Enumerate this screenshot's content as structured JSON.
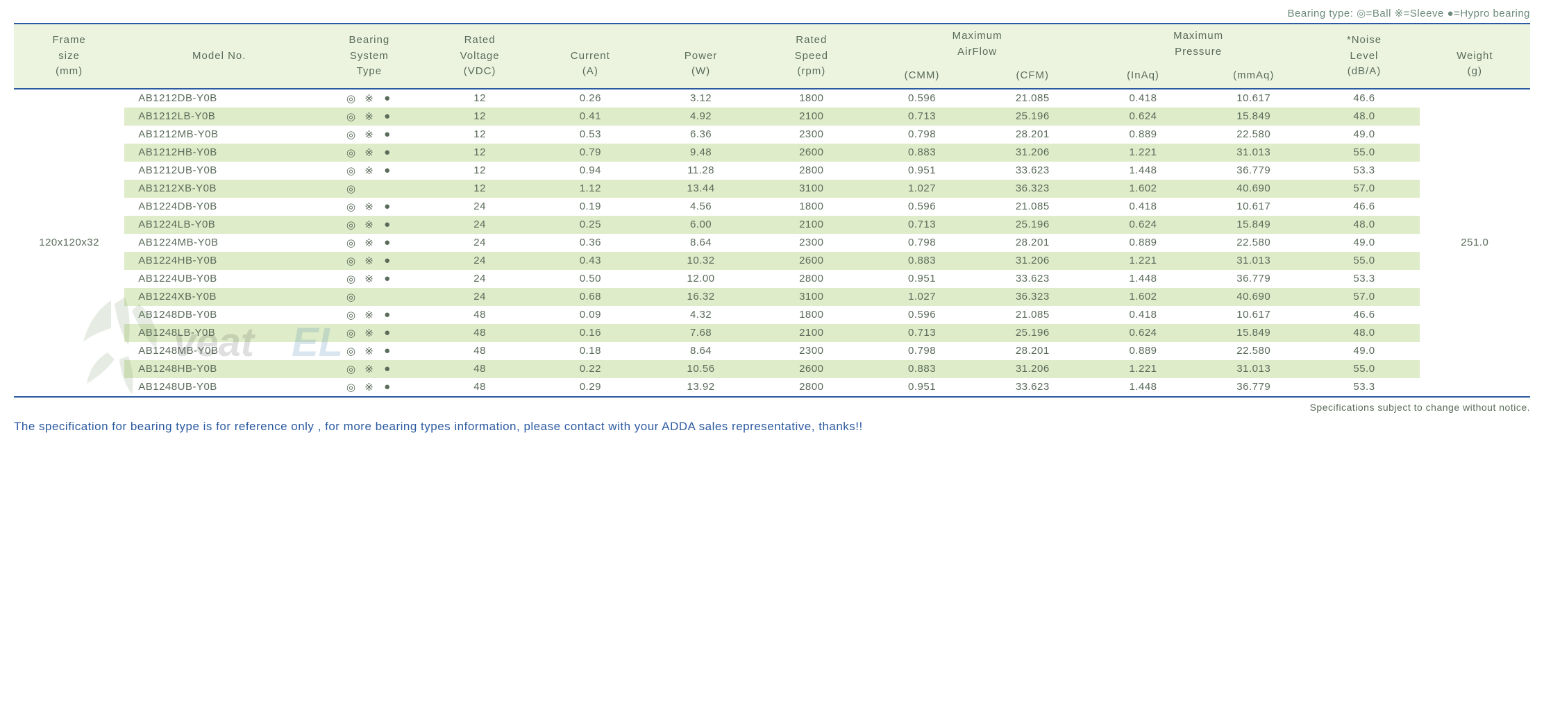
{
  "legend": "Bearing type:  ◎=Ball ※=Sleeve ●=Hypro bearing",
  "header": {
    "frame": [
      "Frame",
      "size",
      "(mm)"
    ],
    "model": [
      "",
      "Model No.",
      ""
    ],
    "bearing": [
      "Bearing",
      "System",
      "Type"
    ],
    "voltage": [
      "Rated",
      "Voltage",
      "(VDC)"
    ],
    "current": [
      "",
      "Current",
      "(A)"
    ],
    "power": [
      "",
      "Power",
      "(W)"
    ],
    "speed": [
      "Rated",
      "Speed",
      "(rpm)"
    ],
    "airflow": [
      "Maximum",
      "AirFlow"
    ],
    "airflow_units": [
      "(CMM)",
      "(CFM)"
    ],
    "pressure": [
      "Maximum",
      "Pressure"
    ],
    "pressure_units": [
      "(InAq)",
      "(mmAq)"
    ],
    "noise": [
      "*Noise",
      "Level",
      "(dB/A)"
    ],
    "weight": [
      "",
      "Weight",
      "(g)"
    ]
  },
  "frame_size": "120x120x32",
  "weight": "251.0",
  "rows": [
    {
      "model": "AB1212DB-Y0B",
      "ball": "◎",
      "sleeve": "※",
      "hypro": "●",
      "voltage": "12",
      "current": "0.26",
      "power": "3.12",
      "speed": "1800",
      "cmm": "0.596",
      "cfm": "21.085",
      "inaq": "0.418",
      "mmaq": "10.617",
      "noise": "46.6"
    },
    {
      "model": "AB1212LB-Y0B",
      "ball": "◎",
      "sleeve": "※",
      "hypro": "●",
      "voltage": "12",
      "current": "0.41",
      "power": "4.92",
      "speed": "2100",
      "cmm": "0.713",
      "cfm": "25.196",
      "inaq": "0.624",
      "mmaq": "15.849",
      "noise": "48.0"
    },
    {
      "model": "AB1212MB-Y0B",
      "ball": "◎",
      "sleeve": "※",
      "hypro": "●",
      "voltage": "12",
      "current": "0.53",
      "power": "6.36",
      "speed": "2300",
      "cmm": "0.798",
      "cfm": "28.201",
      "inaq": "0.889",
      "mmaq": "22.580",
      "noise": "49.0"
    },
    {
      "model": "AB1212HB-Y0B",
      "ball": "◎",
      "sleeve": "※",
      "hypro": "●",
      "voltage": "12",
      "current": "0.79",
      "power": "9.48",
      "speed": "2600",
      "cmm": "0.883",
      "cfm": "31.206",
      "inaq": "1.221",
      "mmaq": "31.013",
      "noise": "55.0"
    },
    {
      "model": "AB1212UB-Y0B",
      "ball": "◎",
      "sleeve": "※",
      "hypro": "●",
      "voltage": "12",
      "current": "0.94",
      "power": "11.28",
      "speed": "2800",
      "cmm": "0.951",
      "cfm": "33.623",
      "inaq": "1.448",
      "mmaq": "36.779",
      "noise": "53.3"
    },
    {
      "model": "AB1212XB-Y0B",
      "ball": "◎",
      "sleeve": "",
      "hypro": "",
      "voltage": "12",
      "current": "1.12",
      "power": "13.44",
      "speed": "3100",
      "cmm": "1.027",
      "cfm": "36.323",
      "inaq": "1.602",
      "mmaq": "40.690",
      "noise": "57.0"
    },
    {
      "model": "AB1224DB-Y0B",
      "ball": "◎",
      "sleeve": "※",
      "hypro": "●",
      "voltage": "24",
      "current": "0.19",
      "power": "4.56",
      "speed": "1800",
      "cmm": "0.596",
      "cfm": "21.085",
      "inaq": "0.418",
      "mmaq": "10.617",
      "noise": "46.6"
    },
    {
      "model": "AB1224LB-Y0B",
      "ball": "◎",
      "sleeve": "※",
      "hypro": "●",
      "voltage": "24",
      "current": "0.25",
      "power": "6.00",
      "speed": "2100",
      "cmm": "0.713",
      "cfm": "25.196",
      "inaq": "0.624",
      "mmaq": "15.849",
      "noise": "48.0"
    },
    {
      "model": "AB1224MB-Y0B",
      "ball": "◎",
      "sleeve": "※",
      "hypro": "●",
      "voltage": "24",
      "current": "0.36",
      "power": "8.64",
      "speed": "2300",
      "cmm": "0.798",
      "cfm": "28.201",
      "inaq": "0.889",
      "mmaq": "22.580",
      "noise": "49.0"
    },
    {
      "model": "AB1224HB-Y0B",
      "ball": "◎",
      "sleeve": "※",
      "hypro": "●",
      "voltage": "24",
      "current": "0.43",
      "power": "10.32",
      "speed": "2600",
      "cmm": "0.883",
      "cfm": "31.206",
      "inaq": "1.221",
      "mmaq": "31.013",
      "noise": "55.0"
    },
    {
      "model": "AB1224UB-Y0B",
      "ball": "◎",
      "sleeve": "※",
      "hypro": "●",
      "voltage": "24",
      "current": "0.50",
      "power": "12.00",
      "speed": "2800",
      "cmm": "0.951",
      "cfm": "33.623",
      "inaq": "1.448",
      "mmaq": "36.779",
      "noise": "53.3"
    },
    {
      "model": "AB1224XB-Y0B",
      "ball": "◎",
      "sleeve": "",
      "hypro": "",
      "voltage": "24",
      "current": "0.68",
      "power": "16.32",
      "speed": "3100",
      "cmm": "1.027",
      "cfm": "36.323",
      "inaq": "1.602",
      "mmaq": "40.690",
      "noise": "57.0"
    },
    {
      "model": "AB1248DB-Y0B",
      "ball": "◎",
      "sleeve": "※",
      "hypro": "●",
      "voltage": "48",
      "current": "0.09",
      "power": "4.32",
      "speed": "1800",
      "cmm": "0.596",
      "cfm": "21.085",
      "inaq": "0.418",
      "mmaq": "10.617",
      "noise": "46.6"
    },
    {
      "model": "AB1248LB-Y0B",
      "ball": "◎",
      "sleeve": "※",
      "hypro": "●",
      "voltage": "48",
      "current": "0.16",
      "power": "7.68",
      "speed": "2100",
      "cmm": "0.713",
      "cfm": "25.196",
      "inaq": "0.624",
      "mmaq": "15.849",
      "noise": "48.0"
    },
    {
      "model": "AB1248MB-Y0B",
      "ball": "◎",
      "sleeve": "※",
      "hypro": "●",
      "voltage": "48",
      "current": "0.18",
      "power": "8.64",
      "speed": "2300",
      "cmm": "0.798",
      "cfm": "28.201",
      "inaq": "0.889",
      "mmaq": "22.580",
      "noise": "49.0"
    },
    {
      "model": "AB1248HB-Y0B",
      "ball": "◎",
      "sleeve": "※",
      "hypro": "●",
      "voltage": "48",
      "current": "0.22",
      "power": "10.56",
      "speed": "2600",
      "cmm": "0.883",
      "cfm": "31.206",
      "inaq": "1.221",
      "mmaq": "31.013",
      "noise": "55.0"
    },
    {
      "model": "AB1248UB-Y0B",
      "ball": "◎",
      "sleeve": "※",
      "hypro": "●",
      "voltage": "48",
      "current": "0.29",
      "power": "13.92",
      "speed": "2800",
      "cmm": "0.951",
      "cfm": "33.623",
      "inaq": "1.448",
      "mmaq": "36.779",
      "noise": "53.3"
    }
  ],
  "notice": "Specifications subject to change without notice.",
  "footer": "The specification for bearing type is for reference only , for more bearing types information, please contact with your ADDA sales representative, thanks!!",
  "styling": {
    "header_bg": "#ecf4e0",
    "row_even_bg": "#dfecc9",
    "row_odd_bg": "#ffffff",
    "border_color": "#2c5aa0",
    "text_color": "#5a6b5a",
    "footer_color": "#2c5aa0",
    "legend_color": "#6b8a7a"
  }
}
